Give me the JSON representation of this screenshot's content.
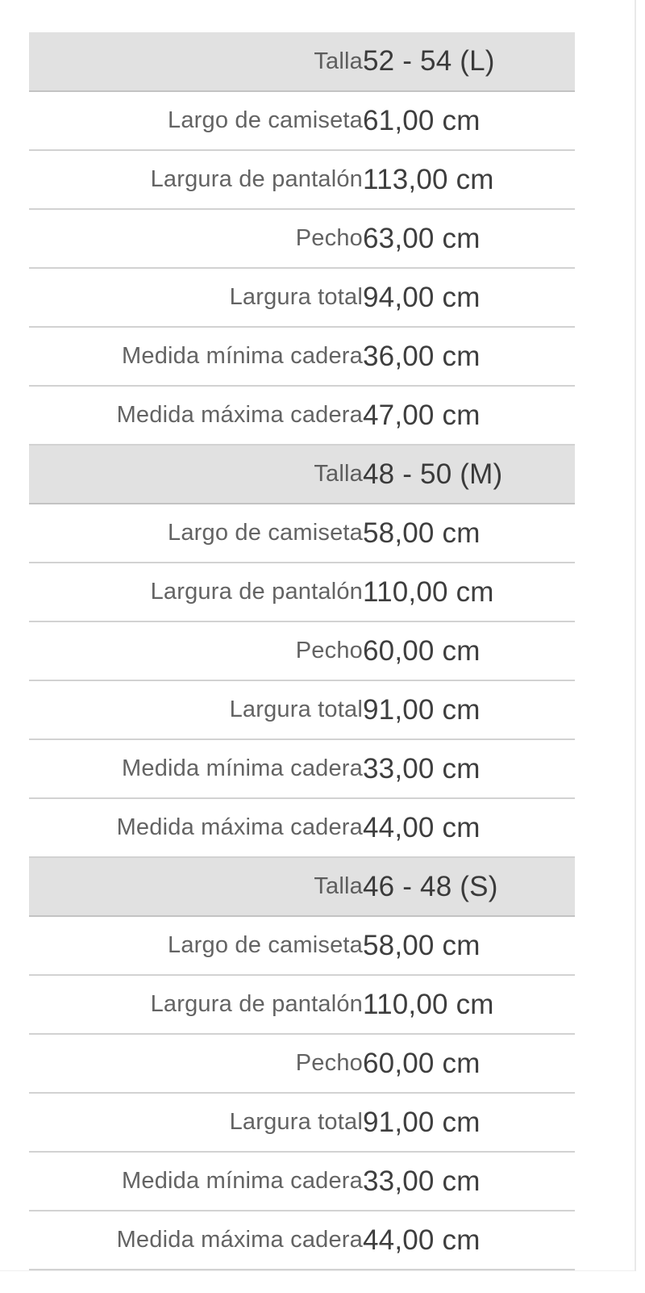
{
  "panel": {
    "name": "product-size-specifications"
  },
  "colors": {
    "header_row_background": "#e1e1e1",
    "row_separator": "#d2d2d2",
    "header_separator": "#c3c3c3",
    "label_text": "#636363",
    "value_text": "#3e3e3e",
    "panel_border": "#e9e9e9"
  },
  "table": {
    "size_groups": [
      {
        "header": {
          "label": "Talla",
          "value": "52 - 54 (L)"
        },
        "rows": [
          {
            "label": "Largo de camiseta",
            "value": "61,00 cm"
          },
          {
            "label": "Largura de pantalón",
            "value": "113,00 cm"
          },
          {
            "label": "Pecho",
            "value": "63,00 cm"
          },
          {
            "label": "Largura total",
            "value": "94,00 cm"
          },
          {
            "label": "Medida mínima cadera",
            "value": "36,00 cm"
          },
          {
            "label": "Medida máxima cadera",
            "value": "47,00 cm"
          }
        ]
      },
      {
        "header": {
          "label": "Talla",
          "value": "48 - 50 (M)"
        },
        "rows": [
          {
            "label": "Largo de camiseta",
            "value": "58,00 cm"
          },
          {
            "label": "Largura de pantalón",
            "value": "110,00 cm"
          },
          {
            "label": "Pecho",
            "value": "60,00 cm"
          },
          {
            "label": "Largura total",
            "value": "91,00 cm"
          },
          {
            "label": "Medida mínima cadera",
            "value": "33,00 cm"
          },
          {
            "label": "Medida máxima cadera",
            "value": "44,00 cm"
          }
        ]
      },
      {
        "header": {
          "label": "Talla",
          "value": "46 - 48 (S)"
        },
        "rows": [
          {
            "label": "Largo de camiseta",
            "value": "58,00 cm"
          },
          {
            "label": "Largura de pantalón",
            "value": "110,00 cm"
          },
          {
            "label": "Pecho",
            "value": "60,00 cm"
          },
          {
            "label": "Largura total",
            "value": "91,00 cm"
          },
          {
            "label": "Medida mínima cadera",
            "value": "33,00 cm"
          },
          {
            "label": "Medida máxima cadera",
            "value": "44,00 cm"
          }
        ]
      }
    ]
  }
}
